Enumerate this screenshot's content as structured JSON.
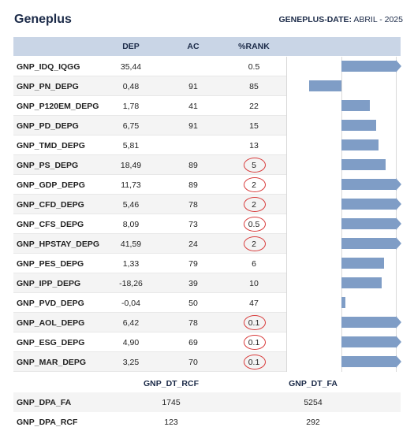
{
  "header": {
    "title": "Geneplus",
    "date_label": "GENEPLUS-DATE:",
    "date_value": "ABRIL - 2025"
  },
  "columns": {
    "dep": "DEP",
    "ac": "AC",
    "rank": "%RANK"
  },
  "rows": [
    {
      "name": "GNP_IDQ_IQGG",
      "dep": "35,44",
      "ac": "",
      "rank": "0.5",
      "circled": false,
      "bar_value": 2.8
    },
    {
      "name": "GNP_PN_DEPG",
      "dep": "0,48",
      "ac": "91",
      "rank": "85",
      "circled": false,
      "bar_value": -1.2
    },
    {
      "name": "GNP_P120EM_DEPG",
      "dep": "1,78",
      "ac": "41",
      "rank": "22",
      "circled": false,
      "bar_value": 1.05
    },
    {
      "name": "GNP_PD_DEPG",
      "dep": "6,75",
      "ac": "91",
      "rank": "15",
      "circled": false,
      "bar_value": 1.3
    },
    {
      "name": "GNP_TMD_DEPG",
      "dep": "5,81",
      "ac": "",
      "rank": "13",
      "circled": false,
      "bar_value": 1.38
    },
    {
      "name": "GNP_PS_DEPG",
      "dep": "18,49",
      "ac": "89",
      "rank": "5",
      "circled": true,
      "bar_value": 1.65
    },
    {
      "name": "GNP_GDP_DEPG",
      "dep": "11,73",
      "ac": "89",
      "rank": "2",
      "circled": true,
      "bar_value": 2.05
    },
    {
      "name": "GNP_CFD_DEPG",
      "dep": "5,46",
      "ac": "78",
      "rank": "2",
      "circled": true,
      "bar_value": 2.05
    },
    {
      "name": "GNP_CFS_DEPG",
      "dep": "8,09",
      "ac": "73",
      "rank": "0.5",
      "circled": true,
      "bar_value": 2.8
    },
    {
      "name": "GNP_HPSTAY_DEPG",
      "dep": "41,59",
      "ac": "24",
      "rank": "2",
      "circled": true,
      "bar_value": 2.05
    },
    {
      "name": "GNP_PES_DEPG",
      "dep": "1,33",
      "ac": "79",
      "rank": "6",
      "circled": false,
      "bar_value": 1.6
    },
    {
      "name": "GNP_IPP_DEPG",
      "dep": "-18,26",
      "ac": "39",
      "rank": "10",
      "circled": false,
      "bar_value": 1.5
    },
    {
      "name": "GNP_PVD_DEPG",
      "dep": "-0,04",
      "ac": "50",
      "rank": "47",
      "circled": false,
      "bar_value": 0.15
    },
    {
      "name": "GNP_AOL_DEPG",
      "dep": "6,42",
      "ac": "78",
      "rank": "0.1",
      "circled": true,
      "bar_value": 3.0
    },
    {
      "name": "GNP_ESG_DEPG",
      "dep": "4,90",
      "ac": "69",
      "rank": "0.1",
      "circled": true,
      "bar_value": 3.0
    },
    {
      "name": "GNP_MAR_DEPG",
      "dep": "3,25",
      "ac": "70",
      "rank": "0.1",
      "circled": true,
      "bar_value": 3.0
    }
  ],
  "bar_axis": {
    "min": -1.5,
    "max": 2.2
  },
  "subtable": {
    "headers": [
      "GNP_DT_RCF",
      "GNP_DT_FA"
    ],
    "rows": [
      {
        "name": "GNP_DPA_FA",
        "v1": "1745",
        "v2": "5254"
      },
      {
        "name": "GNP_DPA_RCF",
        "v1": "123",
        "v2": "292"
      }
    ]
  },
  "colors": {
    "bar": "#7f9dc6",
    "header_bg": "#c9d5e6",
    "circle": "#d83b3b"
  }
}
